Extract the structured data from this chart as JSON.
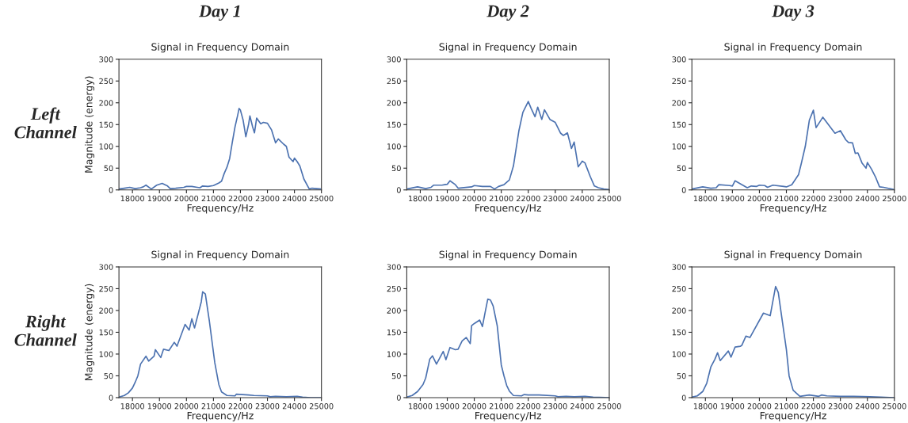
{
  "chart_data": [
    {
      "type": "line",
      "title": "Signal in Frequency Domain",
      "xlabel": "Frequency/Hz",
      "ylabel": "Magnitude (energy)",
      "annotations": [
        "Day 1",
        "Left Channel"
      ],
      "xlim": [
        17500,
        25000
      ],
      "ylim": [
        0,
        300
      ],
      "xticks": [
        18000,
        19000,
        20000,
        21000,
        22000,
        23000,
        24000,
        25000
      ],
      "yticks": [
        0,
        50,
        100,
        150,
        200,
        250,
        300
      ],
      "series": [
        {
          "color": "#4c72b0",
          "x": [
            17500,
            17700,
            17900,
            18100,
            18300,
            18400,
            18500,
            18700,
            18900,
            19100,
            19300,
            19400,
            19600,
            19900,
            20000,
            20200,
            20400,
            20500,
            20600,
            20800,
            21000,
            21200,
            21300,
            21400,
            21500,
            21600,
            21700,
            21800,
            21900,
            21950,
            22000,
            22100,
            22200,
            22300,
            22350,
            22450,
            22520,
            22600,
            22750,
            22850,
            23000,
            23150,
            23300,
            23400,
            23600,
            23700,
            23800,
            23950,
            24000,
            24100,
            24200,
            24350,
            24550,
            24650,
            25000
          ],
          "values": [
            2,
            4,
            6,
            3,
            5,
            7,
            11,
            2,
            11,
            15,
            9,
            3,
            4,
            6,
            8,
            8,
            6,
            5,
            9,
            8,
            10,
            16,
            20,
            38,
            52,
            72,
            110,
            145,
            172,
            187,
            183,
            160,
            122,
            150,
            170,
            145,
            131,
            165,
            152,
            155,
            153,
            138,
            108,
            117,
            105,
            100,
            75,
            65,
            73,
            65,
            55,
            25,
            2,
            4,
            2
          ]
        }
      ]
    },
    {
      "type": "line",
      "title": "Signal in Frequency Domain",
      "xlabel": "Frequency/Hz",
      "annotations": [
        "Day 2"
      ],
      "xlim": [
        17500,
        25000
      ],
      "ylim": [
        0,
        300
      ],
      "xticks": [
        18000,
        19000,
        20000,
        21000,
        22000,
        23000,
        24000,
        25000
      ],
      "yticks": [
        0,
        50,
        100,
        150,
        200,
        250,
        300
      ],
      "series": [
        {
          "color": "#4c72b0",
          "x": [
            17500,
            17900,
            18200,
            18400,
            18500,
            18800,
            18900,
            19000,
            19100,
            19300,
            19400,
            19900,
            20000,
            20300,
            20600,
            20750,
            20900,
            21100,
            21300,
            21450,
            21550,
            21650,
            21800,
            22000,
            22100,
            22250,
            22350,
            22500,
            22600,
            22800,
            23000,
            23200,
            23300,
            23450,
            23600,
            23700,
            23850,
            24000,
            24100,
            24300,
            24450,
            24600,
            24800,
            25000
          ],
          "values": [
            2,
            7,
            3,
            6,
            11,
            11,
            12,
            13,
            21,
            12,
            4,
            7,
            10,
            8,
            8,
            2,
            8,
            12,
            23,
            55,
            95,
            135,
            178,
            203,
            188,
            168,
            190,
            162,
            184,
            162,
            155,
            130,
            125,
            131,
            95,
            110,
            53,
            66,
            62,
            30,
            9,
            5,
            2,
            1
          ]
        }
      ]
    },
    {
      "type": "line",
      "title": "Signal in Frequency Domain",
      "xlabel": "Frequency/Hz",
      "annotations": [
        "Day 3"
      ],
      "xlim": [
        17500,
        25000
      ],
      "ylim": [
        0,
        300
      ],
      "xticks": [
        18000,
        19000,
        20000,
        21000,
        22000,
        23000,
        24000,
        25000
      ],
      "yticks": [
        0,
        50,
        100,
        150,
        200,
        250,
        300
      ],
      "series": [
        {
          "color": "#4c72b0",
          "x": [
            17500,
            17900,
            18200,
            18400,
            18500,
            18900,
            19000,
            19100,
            19550,
            19700,
            19900,
            20000,
            20200,
            20300,
            20500,
            20900,
            21000,
            21200,
            21450,
            21550,
            21700,
            21850,
            22000,
            22100,
            22300,
            22350,
            22800,
            23000,
            23200,
            23300,
            23450,
            23550,
            23650,
            23800,
            23950,
            24000,
            24150,
            24300,
            24450,
            24600,
            25000
          ],
          "values": [
            2,
            7,
            4,
            5,
            12,
            10,
            9,
            21,
            5,
            9,
            8,
            11,
            10,
            6,
            11,
            8,
            7,
            12,
            35,
            60,
            100,
            160,
            183,
            143,
            162,
            167,
            130,
            136,
            115,
            109,
            108,
            84,
            85,
            62,
            50,
            63,
            48,
            30,
            7,
            6,
            1
          ]
        }
      ]
    },
    {
      "type": "line",
      "title": "Signal in Frequency Domain",
      "xlabel": "Frequency/Hz",
      "ylabel": "Magnitude (energy)",
      "annotations": [
        "Right Channel"
      ],
      "xlim": [
        17500,
        25000
      ],
      "ylim": [
        0,
        300
      ],
      "xticks": [
        18000,
        19000,
        20000,
        21000,
        22000,
        23000,
        24000,
        25000
      ],
      "yticks": [
        0,
        50,
        100,
        150,
        200,
        250,
        300
      ],
      "series": [
        {
          "color": "#4c72b0",
          "x": [
            17500,
            17700,
            17850,
            18000,
            18100,
            18200,
            18300,
            18500,
            18600,
            18800,
            18850,
            19050,
            19150,
            19350,
            19550,
            19650,
            19950,
            20100,
            20200,
            20300,
            20550,
            20600,
            20700,
            20850,
            21050,
            21200,
            21300,
            21500,
            21800,
            21850,
            22300,
            22500,
            23000,
            23100,
            23300,
            23700,
            24100,
            24300,
            24600,
            25000
          ],
          "values": [
            1,
            5,
            11,
            22,
            35,
            50,
            77,
            95,
            84,
            95,
            110,
            92,
            111,
            108,
            127,
            118,
            168,
            155,
            181,
            160,
            220,
            243,
            238,
            175,
            80,
            30,
            13,
            5,
            4,
            8,
            6,
            5,
            4,
            2,
            3,
            2,
            3,
            1,
            0,
            0
          ]
        }
      ]
    },
    {
      "type": "line",
      "title": "Signal in Frequency Domain",
      "xlabel": "Frequency/Hz",
      "xlim": [
        17500,
        25000
      ],
      "ylim": [
        0,
        300
      ],
      "xticks": [
        18000,
        19000,
        20000,
        21000,
        22000,
        23000,
        24000,
        25000
      ],
      "yticks": [
        0,
        50,
        100,
        150,
        200,
        250,
        300
      ],
      "series": [
        {
          "color": "#4c72b0",
          "x": [
            17500,
            17700,
            17900,
            18100,
            18200,
            18350,
            18450,
            18600,
            18850,
            18950,
            19100,
            19300,
            19400,
            19550,
            19700,
            19850,
            19900,
            20000,
            20200,
            20300,
            20400,
            20500,
            20600,
            20700,
            20850,
            21000,
            21100,
            21200,
            21300,
            21450,
            21750,
            21850,
            22000,
            22400,
            23000,
            23100,
            23400,
            23700,
            24100,
            24400,
            25000
          ],
          "values": [
            1,
            5,
            14,
            30,
            45,
            88,
            96,
            77,
            106,
            87,
            115,
            110,
            111,
            130,
            138,
            124,
            165,
            170,
            178,
            163,
            195,
            226,
            224,
            210,
            165,
            75,
            50,
            28,
            15,
            5,
            4,
            7,
            6,
            6,
            4,
            2,
            3,
            2,
            3,
            1,
            0
          ]
        }
      ]
    },
    {
      "type": "line",
      "title": "Signal in Frequency Domain",
      "xlabel": "Frequency/Hz",
      "xlim": [
        17500,
        25000
      ],
      "ylim": [
        0,
        300
      ],
      "xticks": [
        18000,
        19000,
        20000,
        21000,
        22000,
        23000,
        24000,
        25000
      ],
      "yticks": [
        0,
        50,
        100,
        150,
        200,
        250,
        300
      ],
      "series": [
        {
          "color": "#4c72b0",
          "x": [
            17500,
            17700,
            17900,
            18050,
            18200,
            18350,
            18450,
            18550,
            18850,
            18950,
            19100,
            19300,
            19350,
            19500,
            19650,
            20150,
            20400,
            20600,
            20700,
            20850,
            21000,
            21100,
            21250,
            21500,
            21850,
            22200,
            22300,
            22500,
            23000,
            23500,
            24100,
            24500,
            25000
          ],
          "values": [
            1,
            4,
            14,
            33,
            70,
            88,
            103,
            85,
            107,
            93,
            116,
            118,
            120,
            141,
            138,
            194,
            188,
            255,
            241,
            175,
            110,
            50,
            17,
            3,
            6,
            3,
            6,
            4,
            3,
            3,
            2,
            1,
            0
          ]
        }
      ]
    }
  ]
}
